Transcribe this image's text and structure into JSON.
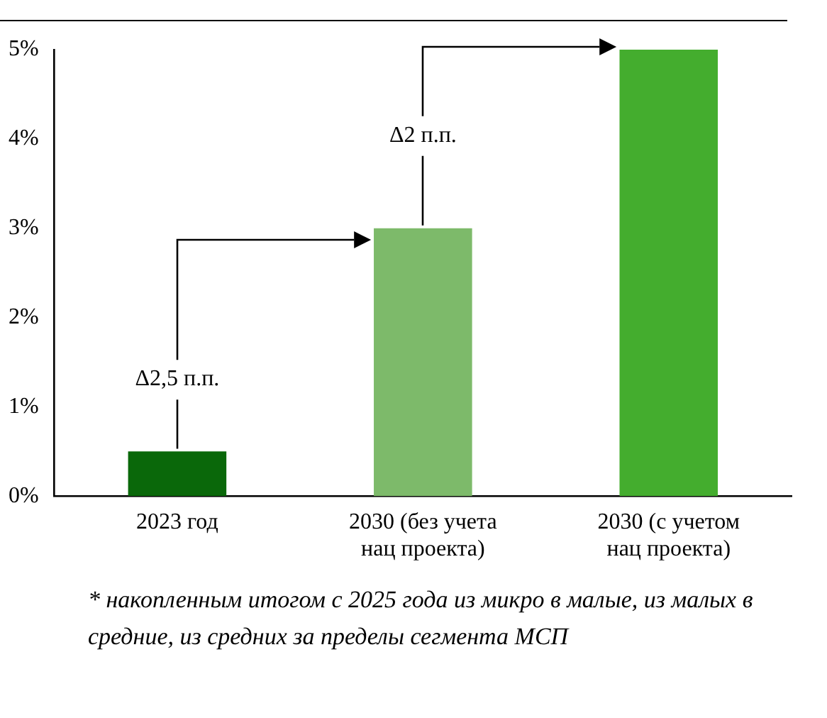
{
  "chart_data": {
    "type": "bar",
    "categories": [
      "2023 год",
      "2030 (без учета нац проекта)",
      "2030 (с учетом нац проекта)"
    ],
    "values": [
      0.5,
      3,
      5
    ],
    "colors": [
      "#0a680a",
      "#7dba6a",
      "#44ad2e"
    ],
    "ylim": [
      0,
      5
    ],
    "yticks": [
      {
        "value": 0,
        "label": "0%"
      },
      {
        "value": 1,
        "label": "1%"
      },
      {
        "value": 2,
        "label": "2%"
      },
      {
        "value": 3,
        "label": "3%"
      },
      {
        "value": 4,
        "label": "4%"
      },
      {
        "value": 5,
        "label": "5%"
      }
    ],
    "grid": false,
    "legend": false,
    "annotations": [
      {
        "text": "Δ2,5 п.п.",
        "x": "2023 год",
        "y": 0.5
      },
      {
        "text": "Δ2 п.п.",
        "x": "2030 (без учета нац проекта)",
        "y": 3
      },
      "* накопленным итогом с 2025 года из микро в малые, из малых в средние, из средних за пределы сегмента МСП"
    ]
  }
}
